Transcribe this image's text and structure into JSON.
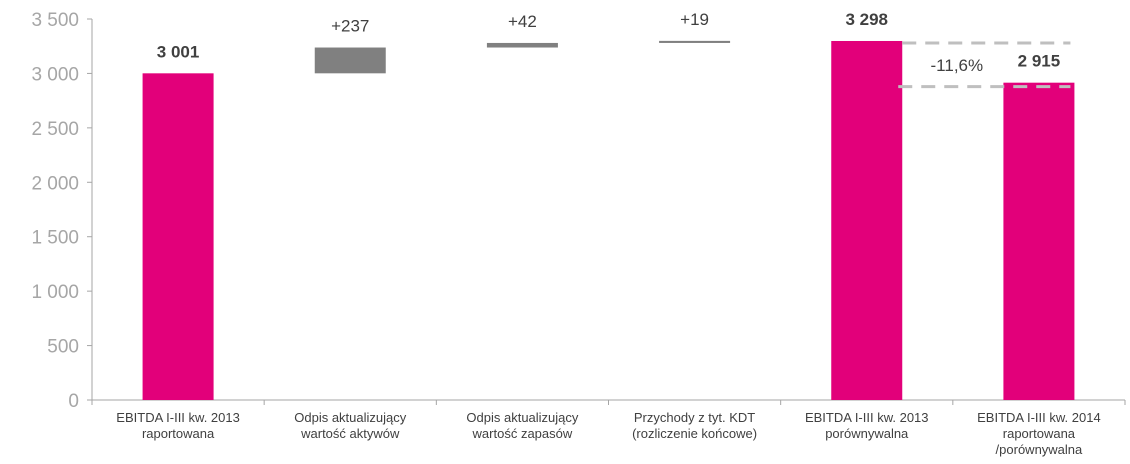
{
  "chart_data": {
    "type": "bar",
    "subtype": "waterfall",
    "categories": [
      [
        "EBITDA I-III kw. 2013",
        "raportowana"
      ],
      [
        "Odpis aktualizujący",
        "wartość aktywów"
      ],
      [
        "Odpis aktualizujący",
        "wartość zapasów"
      ],
      [
        "Przychody z tyt. KDT",
        "(rozliczenie końcowe)"
      ],
      [
        "EBITDA I-III kw. 2013",
        "porównywalna"
      ],
      [
        "EBITDA I-III kw. 2014",
        "raportowana",
        "/porównywalna"
      ]
    ],
    "bars": [
      {
        "kind": "total",
        "base": 0,
        "value": 3001,
        "label": "3 001",
        "bold": true,
        "color": "#e2007a"
      },
      {
        "kind": "delta",
        "base": 3001,
        "value": 237,
        "label": "+237",
        "bold": false,
        "color": "#808080"
      },
      {
        "kind": "delta",
        "base": 3238,
        "value": 42,
        "label": "+42",
        "bold": false,
        "color": "#808080"
      },
      {
        "kind": "delta",
        "base": 3280,
        "value": 19,
        "label": "+19",
        "bold": false,
        "color": "#808080"
      },
      {
        "kind": "total",
        "base": 0,
        "value": 3298,
        "label": "3 298",
        "bold": true,
        "color": "#e2007a"
      },
      {
        "kind": "total",
        "base": 0,
        "value": 2915,
        "label": "2 915",
        "bold": true,
        "color": "#e2007a"
      }
    ],
    "change_annotation": {
      "label": "-11,6%",
      "from": 3298,
      "to": 2915,
      "color": "#bfbfbf"
    },
    "ylim": [
      0,
      3500
    ],
    "yticks": [
      0,
      500,
      1000,
      1500,
      2000,
      2500,
      3000,
      3500
    ],
    "ytick_labels": [
      "0",
      "500",
      "1 000",
      "1 500",
      "2 000",
      "2 500",
      "3 000",
      "3 500"
    ],
    "grid": false,
    "colors": {
      "total": "#e2007a",
      "delta": "#808080",
      "axis": "#a6a6a6",
      "annotation": "#bfbfbf"
    }
  }
}
